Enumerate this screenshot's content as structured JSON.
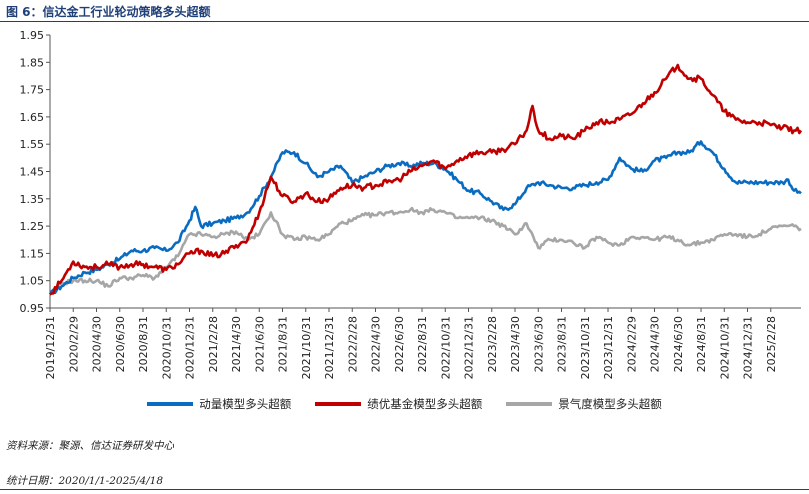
{
  "title": "图 6：信达金工行业轮动策略多头超额",
  "source": "资料来源：聚源、信达证券研发中心",
  "period": "统计日期：2020/1/1-2025/4/18",
  "chart_data": {
    "type": "line",
    "title": "信达金工行业轮动策略多头超额",
    "ylim": [
      0.95,
      1.95
    ],
    "yticks": [
      "1.95",
      "1.85",
      "1.75",
      "1.65",
      "1.55",
      "1.45",
      "1.35",
      "1.25",
      "1.15",
      "1.05",
      "0.95"
    ],
    "x_tick_labels": [
      "2019/12/31",
      "2020/2/29",
      "2020/4/30",
      "2020/6/30",
      "2020/8/31",
      "2020/10/31",
      "2020/12/31",
      "2021/2/28",
      "2021/4/30",
      "2021/6/30",
      "2021/8/31",
      "2021/10/31",
      "2021/12/31",
      "2022/2/28",
      "2022/4/30",
      "2022/6/30",
      "2022/8/31",
      "2022/10/31",
      "2022/12/31",
      "2023/2/28",
      "2023/4/30",
      "2023/6/30",
      "2023/8/31",
      "2023/10/31",
      "2023/12/31",
      "2024/2/29",
      "2024/4/30",
      "2024/6/30",
      "2024/8/31",
      "2024/10/31",
      "2024/12/31",
      "2025/2/28"
    ],
    "x_range_months": [
      0,
      64.6
    ],
    "series": [
      {
        "name": "动量模型多头超额",
        "color": "#0a6cc1",
        "points": [
          [
            0,
            1.0
          ],
          [
            1,
            1.03
          ],
          [
            2,
            1.06
          ],
          [
            3,
            1.08
          ],
          [
            4,
            1.09
          ],
          [
            5,
            1.11
          ],
          [
            6,
            1.13
          ],
          [
            7,
            1.16
          ],
          [
            8,
            1.16
          ],
          [
            9,
            1.17
          ],
          [
            10,
            1.16
          ],
          [
            11,
            1.19
          ],
          [
            12,
            1.27
          ],
          [
            12.5,
            1.32
          ],
          [
            13,
            1.25
          ],
          [
            14,
            1.26
          ],
          [
            15,
            1.27
          ],
          [
            16,
            1.28
          ],
          [
            17,
            1.3
          ],
          [
            18,
            1.36
          ],
          [
            19,
            1.43
          ],
          [
            20,
            1.52
          ],
          [
            21,
            1.52
          ],
          [
            22,
            1.48
          ],
          [
            23,
            1.43
          ],
          [
            24,
            1.45
          ],
          [
            25,
            1.47
          ],
          [
            26,
            1.41
          ],
          [
            27,
            1.43
          ],
          [
            28,
            1.45
          ],
          [
            29,
            1.47
          ],
          [
            30,
            1.48
          ],
          [
            31,
            1.47
          ],
          [
            32,
            1.48
          ],
          [
            33,
            1.48
          ],
          [
            34,
            1.46
          ],
          [
            35,
            1.42
          ],
          [
            36,
            1.38
          ],
          [
            37,
            1.37
          ],
          [
            38,
            1.34
          ],
          [
            39,
            1.31
          ],
          [
            40,
            1.33
          ],
          [
            41,
            1.39
          ],
          [
            42,
            1.41
          ],
          [
            43,
            1.4
          ],
          [
            44,
            1.39
          ],
          [
            45,
            1.39
          ],
          [
            46,
            1.4
          ],
          [
            47,
            1.41
          ],
          [
            48,
            1.42
          ],
          [
            49,
            1.5
          ],
          [
            50,
            1.46
          ],
          [
            51,
            1.45
          ],
          [
            52,
            1.49
          ],
          [
            53,
            1.5
          ],
          [
            54,
            1.52
          ],
          [
            55,
            1.52
          ],
          [
            56,
            1.56
          ],
          [
            57,
            1.52
          ],
          [
            58,
            1.46
          ],
          [
            59,
            1.41
          ],
          [
            60,
            1.41
          ],
          [
            61,
            1.41
          ],
          [
            62,
            1.41
          ],
          [
            63,
            1.41
          ],
          [
            63.5,
            1.42
          ],
          [
            64,
            1.38
          ],
          [
            64.6,
            1.37
          ]
        ]
      },
      {
        "name": "绩优基金模型多头超额",
        "color": "#c00000",
        "points": [
          [
            0,
            1.0
          ],
          [
            1,
            1.05
          ],
          [
            2,
            1.12
          ],
          [
            3,
            1.1
          ],
          [
            4,
            1.1
          ],
          [
            5,
            1.11
          ],
          [
            6,
            1.1
          ],
          [
            7,
            1.11
          ],
          [
            8,
            1.11
          ],
          [
            9,
            1.1
          ],
          [
            10,
            1.09
          ],
          [
            11,
            1.11
          ],
          [
            12,
            1.15
          ],
          [
            13,
            1.16
          ],
          [
            14,
            1.14
          ],
          [
            15,
            1.15
          ],
          [
            16,
            1.18
          ],
          [
            17,
            1.2
          ],
          [
            18,
            1.3
          ],
          [
            19,
            1.43
          ],
          [
            20,
            1.36
          ],
          [
            21,
            1.34
          ],
          [
            22,
            1.37
          ],
          [
            23,
            1.34
          ],
          [
            24,
            1.35
          ],
          [
            25,
            1.39
          ],
          [
            26,
            1.4
          ],
          [
            27,
            1.39
          ],
          [
            28,
            1.4
          ],
          [
            29,
            1.41
          ],
          [
            30,
            1.42
          ],
          [
            31,
            1.45
          ],
          [
            32,
            1.47
          ],
          [
            33,
            1.49
          ],
          [
            34,
            1.46
          ],
          [
            35,
            1.49
          ],
          [
            36,
            1.51
          ],
          [
            37,
            1.52
          ],
          [
            38,
            1.52
          ],
          [
            39,
            1.53
          ],
          [
            40,
            1.55
          ],
          [
            41,
            1.6
          ],
          [
            41.5,
            1.69
          ],
          [
            42,
            1.6
          ],
          [
            43,
            1.57
          ],
          [
            44,
            1.58
          ],
          [
            45,
            1.57
          ],
          [
            46,
            1.6
          ],
          [
            47,
            1.63
          ],
          [
            48,
            1.63
          ],
          [
            49,
            1.64
          ],
          [
            50,
            1.66
          ],
          [
            51,
            1.7
          ],
          [
            52,
            1.74
          ],
          [
            53,
            1.79
          ],
          [
            54,
            1.84
          ],
          [
            55,
            1.79
          ],
          [
            56,
            1.79
          ],
          [
            57,
            1.73
          ],
          [
            58,
            1.67
          ],
          [
            59,
            1.64
          ],
          [
            60,
            1.63
          ],
          [
            61,
            1.63
          ],
          [
            62,
            1.62
          ],
          [
            63,
            1.61
          ],
          [
            64,
            1.6
          ],
          [
            64.6,
            1.6
          ]
        ]
      },
      {
        "name": "景气度模型多头超额",
        "color": "#a6a6a6",
        "points": [
          [
            0,
            1.0
          ],
          [
            1,
            1.04
          ],
          [
            2,
            1.05
          ],
          [
            3,
            1.05
          ],
          [
            4,
            1.05
          ],
          [
            5,
            1.03
          ],
          [
            6,
            1.06
          ],
          [
            7,
            1.06
          ],
          [
            8,
            1.07
          ],
          [
            9,
            1.06
          ],
          [
            10,
            1.1
          ],
          [
            11,
            1.14
          ],
          [
            12,
            1.22
          ],
          [
            13,
            1.22
          ],
          [
            14,
            1.21
          ],
          [
            15,
            1.22
          ],
          [
            16,
            1.23
          ],
          [
            17,
            1.2
          ],
          [
            18,
            1.22
          ],
          [
            19,
            1.3
          ],
          [
            20,
            1.22
          ],
          [
            21,
            1.2
          ],
          [
            22,
            1.21
          ],
          [
            23,
            1.2
          ],
          [
            24,
            1.22
          ],
          [
            25,
            1.26
          ],
          [
            26,
            1.27
          ],
          [
            27,
            1.29
          ],
          [
            28,
            1.29
          ],
          [
            29,
            1.3
          ],
          [
            30,
            1.3
          ],
          [
            31,
            1.31
          ],
          [
            32,
            1.3
          ],
          [
            33,
            1.31
          ],
          [
            34,
            1.3
          ],
          [
            35,
            1.28
          ],
          [
            36,
            1.28
          ],
          [
            37,
            1.28
          ],
          [
            38,
            1.27
          ],
          [
            39,
            1.25
          ],
          [
            40,
            1.22
          ],
          [
            41,
            1.26
          ],
          [
            42,
            1.17
          ],
          [
            43,
            1.2
          ],
          [
            44,
            1.2
          ],
          [
            45,
            1.19
          ],
          [
            46,
            1.17
          ],
          [
            47,
            1.21
          ],
          [
            48,
            1.19
          ],
          [
            49,
            1.18
          ],
          [
            50,
            1.21
          ],
          [
            51,
            1.21
          ],
          [
            52,
            1.2
          ],
          [
            53,
            1.21
          ],
          [
            54,
            1.2
          ],
          [
            55,
            1.18
          ],
          [
            56,
            1.19
          ],
          [
            57,
            1.2
          ],
          [
            58,
            1.22
          ],
          [
            59,
            1.22
          ],
          [
            60,
            1.21
          ],
          [
            61,
            1.22
          ],
          [
            62,
            1.24
          ],
          [
            63,
            1.25
          ],
          [
            64,
            1.25
          ],
          [
            64.6,
            1.24
          ]
        ]
      }
    ]
  }
}
